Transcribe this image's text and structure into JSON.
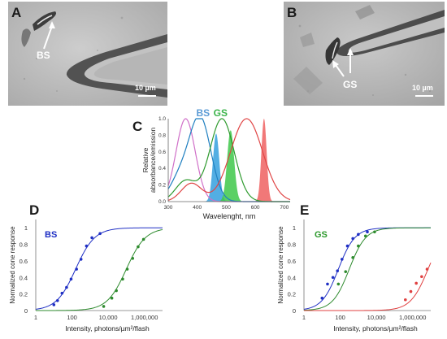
{
  "panels": {
    "A": {
      "letter": "A",
      "callout": "BS",
      "scale": "10 µm"
    },
    "B": {
      "letter": "B",
      "callout": "GS",
      "scale": "10 µm"
    },
    "C": {
      "letter": "C"
    },
    "D": {
      "letter": "D",
      "tag": "BS"
    },
    "E": {
      "letter": "E",
      "tag": "GS"
    }
  },
  "colors": {
    "blue": "#1f2fc4",
    "green": "#2e8b2e",
    "red": "#e04040",
    "pink": "#d070c8",
    "cyan": "#35a0de",
    "lightgreen": "#3ec84a",
    "salmon": "#ee6060",
    "bs_label": "#5b9bd5",
    "gs_label": "#3cb44b",
    "gs_tag": "#2e9a2e"
  },
  "chart_data": [
    {
      "id": "C",
      "type": "line",
      "ylabel": "Relative absorbance/emission",
      "xlabel": "Wavelenght, nm",
      "x_ticks": [
        300,
        400,
        500,
        600,
        700
      ],
      "y_ticks": [
        "0.0",
        "0.2",
        "0.4",
        "0.6",
        "0.8",
        "1.0"
      ],
      "xlim": [
        300,
        720
      ],
      "ylim": [
        0,
        1.0
      ],
      "annotations": [
        {
          "text": "BS",
          "color": "#5b9bd5"
        },
        {
          "text": "GS",
          "color": "#3cb44b"
        }
      ],
      "series": [
        {
          "kind": "curve",
          "color": "#d070c8",
          "peak": 360,
          "width": 33,
          "tail": 0.0,
          "tailpeak": 350
        },
        {
          "kind": "curve",
          "color": "#1f7fc0",
          "peak": 410,
          "width": 37,
          "tail": 0.27,
          "tailpeak": 340
        },
        {
          "kind": "curve",
          "color": "#2e9a2e",
          "peak": 485,
          "width": 42,
          "tail": 0.25,
          "tailpeak": 360
        },
        {
          "kind": "curve",
          "color": "#e04545",
          "peak": 570,
          "width": 55,
          "tail": 0.22,
          "tailpeak": 380
        },
        {
          "kind": "filled",
          "color": "#35a0de",
          "peak": 465,
          "width": 11,
          "height": 0.82
        },
        {
          "kind": "filled",
          "color": "#3ec84a",
          "peak": 515,
          "width": 12,
          "height": 0.86
        },
        {
          "kind": "filled",
          "color": "#ee6060",
          "peak": 630,
          "width": 9,
          "height": 1.0
        }
      ]
    },
    {
      "id": "D",
      "type": "line",
      "ylabel": "Normalized cone response",
      "xlabel": "Intensity,  photons/µm²/flash",
      "x_ticks": [
        "1",
        "100",
        "10,000",
        "1,000,000"
      ],
      "y_ticks": [
        "0",
        "0.2",
        "0.4",
        "0.6",
        "0.8",
        "1"
      ],
      "xlim_log10": [
        0,
        7
      ],
      "ylim": [
        0,
        1.1
      ],
      "series": [
        {
          "color": "#1f2fc4",
          "half_log": 2.2,
          "n": 0.82,
          "points": [
            [
              1.0,
              0.07
            ],
            [
              1.2,
              0.12
            ],
            [
              1.45,
              0.21
            ],
            [
              1.7,
              0.28
            ],
            [
              1.95,
              0.38
            ],
            [
              2.25,
              0.5
            ],
            [
              2.5,
              0.62
            ],
            [
              2.8,
              0.78
            ],
            [
              3.1,
              0.88
            ],
            [
              3.55,
              0.93
            ]
          ]
        },
        {
          "color": "#2e8b2e",
          "half_log": 5.0,
          "n": 0.82,
          "points": [
            [
              3.75,
              0.05
            ],
            [
              4.2,
              0.15
            ],
            [
              4.45,
              0.24
            ],
            [
              4.8,
              0.38
            ],
            [
              5.05,
              0.5
            ],
            [
              5.35,
              0.63
            ],
            [
              5.65,
              0.77
            ],
            [
              5.95,
              0.86
            ]
          ]
        }
      ]
    },
    {
      "id": "E",
      "type": "line",
      "ylabel": "Normalized cone response",
      "xlabel": "Intensity,  photons/µm²/flash",
      "x_ticks": [
        "1",
        "100",
        "10,000",
        "1,000,000"
      ],
      "y_ticks": [
        "0",
        "0.2",
        "0.4",
        "0.6",
        "0.8",
        "1"
      ],
      "xlim_log10": [
        0,
        7
      ],
      "ylim": [
        0,
        1.1
      ],
      "series": [
        {
          "color": "#1f2fc4",
          "half_log": 1.9,
          "n": 0.95,
          "points": [
            [
              1.0,
              0.15
            ],
            [
              1.3,
              0.32
            ],
            [
              1.6,
              0.4
            ],
            [
              1.85,
              0.48
            ],
            [
              2.1,
              0.62
            ],
            [
              2.4,
              0.78
            ],
            [
              2.7,
              0.87
            ],
            [
              3.0,
              0.92
            ],
            [
              3.5,
              0.95
            ]
          ]
        },
        {
          "color": "#2e8b2e",
          "half_log": 2.5,
          "n": 0.95,
          "points": [
            [
              1.9,
              0.32
            ],
            [
              2.3,
              0.47
            ],
            [
              2.7,
              0.64
            ],
            [
              3.0,
              0.78
            ],
            [
              3.4,
              0.9
            ],
            [
              3.9,
              0.95
            ]
          ]
        },
        {
          "color": "#e04040",
          "half_log": 6.85,
          "n": 0.9,
          "points": [
            [
              5.6,
              0.13
            ],
            [
              5.9,
              0.23
            ],
            [
              6.2,
              0.33
            ],
            [
              6.5,
              0.41
            ],
            [
              6.8,
              0.5
            ]
          ]
        }
      ]
    }
  ]
}
